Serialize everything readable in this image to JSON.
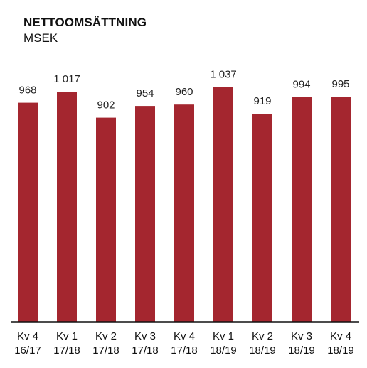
{
  "chart_data": {
    "type": "bar",
    "title": "NETTOOMSÄTTNING",
    "subtitle": "MSEK",
    "categories": [
      [
        "Kv 4",
        "16/17"
      ],
      [
        "Kv 1",
        "17/18"
      ],
      [
        "Kv 2",
        "17/18"
      ],
      [
        "Kv 3",
        "17/18"
      ],
      [
        "Kv 4",
        "17/18"
      ],
      [
        "Kv 1",
        "18/19"
      ],
      [
        "Kv 2",
        "18/19"
      ],
      [
        "Kv 3",
        "18/19"
      ],
      [
        "Kv 4",
        "18/19"
      ]
    ],
    "values": [
      968,
      1017,
      902,
      954,
      960,
      1037,
      919,
      994,
      995
    ],
    "value_labels": [
      "968",
      "1 017",
      "902",
      "954",
      "960",
      "1 037",
      "919",
      "994",
      "995"
    ],
    "xlabel": "",
    "ylabel": "",
    "ylim": [
      0,
      1100
    ],
    "grid": false,
    "legend": "none",
    "bar_color": "#a4262f"
  }
}
